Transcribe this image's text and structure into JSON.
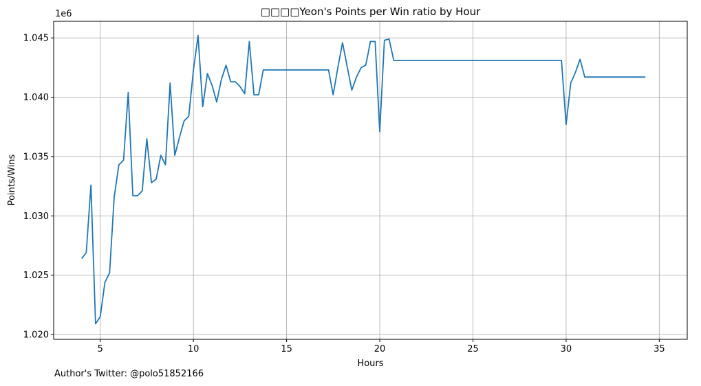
{
  "chart_data": {
    "type": "line",
    "title": "□□□□Yeon's Points per Win ratio by Hour",
    "xlabel": "Hours",
    "ylabel": "Points/Wins",
    "y_offset_label": "1e6",
    "xlim": [
      2.5,
      36.5
    ],
    "ylim": [
      1019600,
      1046400
    ],
    "xticks": [
      5,
      10,
      15,
      20,
      25,
      30,
      35
    ],
    "yticks": [
      1020000,
      1025000,
      1030000,
      1035000,
      1040000,
      1045000
    ],
    "ytick_labels": [
      "1.020",
      "1.025",
      "1.030",
      "1.035",
      "1.040",
      "1.045"
    ],
    "grid": true,
    "line_color": "#1f77b4",
    "series": [
      {
        "x": [
          4.0,
          4.25,
          4.5,
          4.75,
          5.0,
          5.25,
          5.5,
          5.75,
          6.0,
          6.25,
          6.5,
          6.75,
          7.0,
          7.25,
          7.5,
          7.75,
          8.0,
          8.25,
          8.5,
          8.75,
          9.0,
          9.25,
          9.5,
          9.75,
          10.0,
          10.25,
          10.5,
          10.75,
          11.0,
          11.25,
          11.5,
          11.75,
          12.0,
          12.25,
          12.5,
          12.75,
          13.0,
          13.25,
          13.5,
          13.75,
          14.0,
          17.25,
          17.5,
          17.75,
          18.0,
          18.25,
          18.5,
          18.75,
          19.0,
          19.25,
          19.5,
          19.75,
          20.0,
          20.25,
          20.5,
          20.75,
          29.75,
          30.0,
          30.25,
          30.5,
          30.75,
          31.0,
          34.25
        ],
        "y": [
          1026400,
          1026900,
          1032600,
          1020900,
          1021500,
          1024400,
          1025200,
          1031600,
          1034300,
          1034700,
          1040400,
          1031700,
          1031700,
          1032100,
          1036500,
          1032800,
          1033100,
          1035100,
          1034300,
          1041200,
          1035100,
          1036600,
          1038000,
          1038400,
          1042300,
          1045200,
          1039200,
          1042000,
          1041000,
          1039600,
          1041500,
          1042700,
          1041300,
          1041300,
          1040900,
          1040300,
          1044700,
          1040200,
          1040200,
          1042300,
          1042300,
          1042300,
          1040200,
          1042500,
          1044600,
          1042600,
          1040600,
          1041700,
          1042500,
          1042700,
          1044700,
          1044700,
          1037100,
          1044800,
          1044900,
          1043100,
          1043100,
          1037700,
          1041200,
          1042100,
          1043200,
          1041700,
          1041700
        ]
      }
    ]
  },
  "footer": {
    "author": "Author's Twitter: @polo51852166"
  }
}
